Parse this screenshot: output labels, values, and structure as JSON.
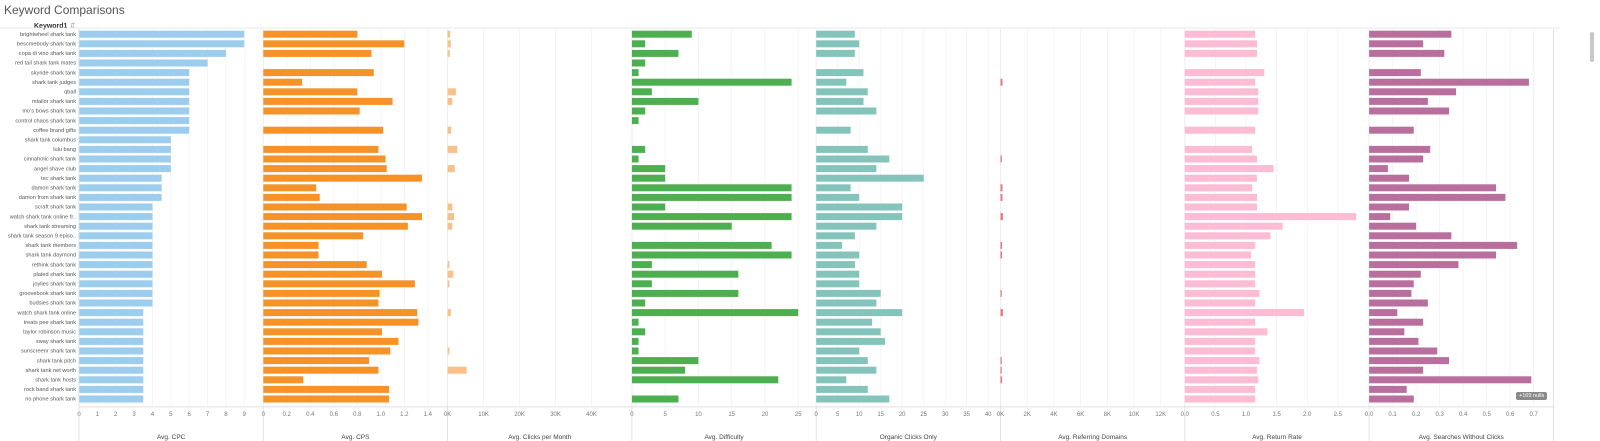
{
  "title": "Keyword Comparisons",
  "row_header": "Keyword1",
  "sort_glyph": "⇩̄",
  "null_badge": "+169 nulls",
  "chart_data": {
    "type": "bar",
    "orientation": "horizontal",
    "categories": [
      "brightwheel shark tank",
      "bescmebody shark tank",
      "copa di vino shark tank",
      "red tail shark tank mates",
      "skyride shark tank",
      "shark tank judges",
      "qball",
      "mtailor shark tank",
      "mo's bows shark tank",
      "control chaos shark tank",
      "coffee brand gifts",
      "shark tank columbus",
      "lulu bang",
      "cinnaholic shark tank",
      "angel shave club",
      "tec shark tank",
      "damon shark tank",
      "damon from shark tank",
      "scraft shark tank",
      "watch shark tank online fr..",
      "shark tank streaming",
      "shark tank season 9 episo..",
      "shark tank members",
      "shark tank daymond",
      "rethink shark tank",
      "plated shark tank",
      "joylies shark tank",
      "groovebook shark tank",
      "budsies shark tank",
      "watch shark tank online",
      "treats pee shark tank",
      "taylor robinson music",
      "sway shark tank",
      "sunscreenr shark tank",
      "shark tank pitch",
      "shark tank net worth",
      "shark tank hosts",
      "rock band shark tank",
      "no phone shark tank"
    ],
    "series": [
      {
        "name": "Avg. CPC",
        "color": "#9dcdee",
        "axis_max": 9.6,
        "ticks": [
          0,
          1,
          2,
          3,
          4,
          5,
          6,
          7,
          8,
          9
        ],
        "tick_labels": [
          "0",
          "1",
          "2",
          "3",
          "4",
          "5",
          "6",
          "7",
          "8",
          "9"
        ],
        "values": [
          9,
          9,
          8,
          7,
          6,
          6,
          6,
          6,
          6,
          6,
          6,
          5,
          5,
          5,
          5,
          4.5,
          4.5,
          4.5,
          4,
          4,
          4,
          4,
          4,
          4,
          4,
          4,
          4,
          4,
          4,
          3.5,
          3.5,
          3.5,
          3.5,
          3.5,
          3.5,
          3.5,
          3.5,
          3.5,
          3.5
        ]
      },
      {
        "name": "Avg. CPS",
        "color": "#f5932a",
        "axis_max": 1.5,
        "ticks": [
          0,
          0.2,
          0.4,
          0.6,
          0.8,
          1.0,
          1.2,
          1.4
        ],
        "tick_labels": [
          "0",
          "0.2",
          "0.4",
          "0.6",
          "0.8",
          "1.0",
          "1.2",
          "1.4"
        ],
        "values": [
          0.8,
          1.2,
          0.92,
          null,
          0.94,
          0.33,
          0.8,
          1.1,
          0.82,
          null,
          1.02,
          null,
          0.98,
          1.04,
          1.05,
          1.35,
          0.45,
          0.48,
          1.22,
          1.35,
          1.23,
          0.85,
          0.47,
          0.47,
          0.88,
          1.01,
          1.29,
          0.99,
          0.98,
          1.31,
          1.32,
          1.01,
          1.15,
          1.08,
          0.9,
          0.98,
          0.34,
          1.07,
          1.07
        ]
      },
      {
        "name": "Avg. Clicks per Month",
        "color": "#fbbf88",
        "axis_max": 49000,
        "ticks": [
          0,
          10000,
          20000,
          30000,
          40000
        ],
        "tick_labels": [
          "0K",
          "10K",
          "20K",
          "30K",
          "40K"
        ],
        "values": [
          700,
          900,
          600,
          null,
          null,
          null,
          2300,
          1300,
          null,
          null,
          1000,
          null,
          2700,
          null,
          2000,
          null,
          null,
          null,
          1300,
          1800,
          1300,
          null,
          null,
          null,
          500,
          1600,
          500,
          null,
          null,
          900,
          null,
          null,
          null,
          500,
          null,
          5300,
          null,
          null,
          null
        ]
      },
      {
        "name": "Avg. Difficulty",
        "color": "#4caf50",
        "axis_max": 26.5,
        "ticks": [
          0,
          5,
          10,
          15,
          20,
          25
        ],
        "tick_labels": [
          "0",
          "5",
          "10",
          "15",
          "20",
          "25"
        ],
        "values": [
          9,
          2,
          7,
          2,
          1,
          24,
          3,
          10,
          2,
          1,
          null,
          null,
          2,
          1,
          5,
          5,
          24,
          24,
          5,
          24,
          15,
          null,
          21,
          24,
          3,
          16,
          3,
          16,
          2,
          25,
          1,
          2,
          1,
          1,
          10,
          8,
          22,
          null,
          7
        ]
      },
      {
        "name": "Organic Clicks Only",
        "color": "#84c4bb",
        "axis_max": 41,
        "ticks": [
          0,
          5,
          10,
          15,
          20,
          25,
          30,
          35,
          40
        ],
        "tick_labels": [
          "0",
          "5",
          "10",
          "15",
          "20",
          "25",
          "30",
          "35",
          "40"
        ],
        "values": [
          9,
          10,
          9,
          null,
          11,
          7,
          12,
          11,
          14,
          null,
          8,
          null,
          12,
          17,
          14,
          25,
          8,
          10,
          20,
          20,
          14,
          9,
          6,
          10,
          9,
          10,
          10,
          15,
          14,
          20,
          13,
          15,
          16,
          10,
          12,
          14,
          7,
          12,
          17
        ]
      },
      {
        "name": "Avg. Referring Domains",
        "color": "#e8788a",
        "axis_max": 13200,
        "ticks": [
          0,
          2000,
          4000,
          6000,
          8000,
          10000,
          12000
        ],
        "tick_labels": [
          "0K",
          "2K",
          "4K",
          "6K",
          "8K",
          "10K",
          "12K"
        ],
        "values": [
          null,
          null,
          null,
          null,
          null,
          150,
          null,
          null,
          null,
          null,
          null,
          null,
          null,
          100,
          null,
          null,
          150,
          150,
          null,
          180,
          null,
          null,
          120,
          120,
          null,
          null,
          null,
          80,
          null,
          180,
          null,
          null,
          null,
          null,
          80,
          80,
          120,
          null,
          null
        ]
      },
      {
        "name": "Avg. Return Rate",
        "color": "#fbbcd4",
        "axis_max": 2.88,
        "ticks": [
          0,
          0.5,
          1.0,
          1.5,
          2.0,
          2.5
        ],
        "tick_labels": [
          "0.0",
          "0.5",
          "1.0",
          "1.5",
          "2.0",
          "2.5"
        ],
        "values": [
          1.15,
          1.18,
          1.18,
          null,
          1.3,
          1.15,
          1.2,
          1.2,
          1.2,
          null,
          1.15,
          null,
          1.1,
          1.18,
          1.45,
          1.18,
          1.1,
          1.18,
          1.18,
          2.8,
          1.6,
          1.4,
          1.15,
          1.08,
          1.15,
          1.15,
          1.15,
          1.22,
          1.15,
          1.95,
          1.15,
          1.35,
          1.15,
          1.15,
          1.22,
          1.18,
          1.2,
          1.15,
          1.15
        ]
      },
      {
        "name": "Avg. Searches Without Clicks",
        "color": "#b86f9e",
        "axis_max": 0.75,
        "ticks": [
          0,
          0.1,
          0.2,
          0.3,
          0.4,
          0.5,
          0.6,
          0.7
        ],
        "tick_labels": [
          "0.0",
          "0.1",
          "0.2",
          "0.3",
          "0.4",
          "0.5",
          "0.6",
          "0.7"
        ],
        "values": [
          0.35,
          0.23,
          0.32,
          null,
          0.22,
          0.68,
          0.37,
          0.25,
          0.34,
          null,
          0.19,
          null,
          0.26,
          0.23,
          0.08,
          0.17,
          0.54,
          0.58,
          0.17,
          0.09,
          0.2,
          0.35,
          0.63,
          0.54,
          0.38,
          0.22,
          0.19,
          0.18,
          0.25,
          0.12,
          0.23,
          0.15,
          0.21,
          0.29,
          0.34,
          0.23,
          0.69,
          0.16,
          0.19
        ]
      }
    ]
  }
}
